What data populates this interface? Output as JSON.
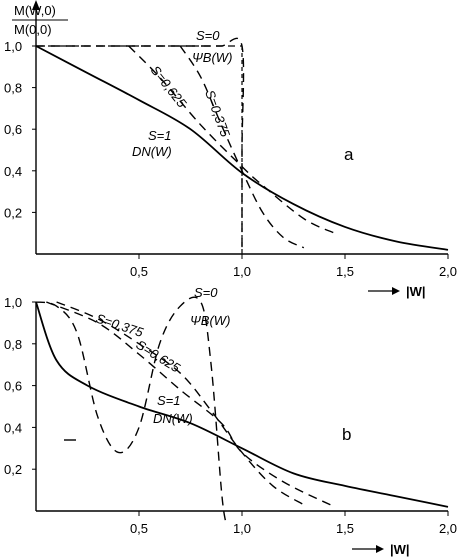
{
  "chart_data": [
    {
      "panel": "a",
      "type": "line",
      "ylabel_num": "M(W,0)",
      "ylabel_den": "M(0,0)",
      "xlabel": "→ |W|",
      "xlim": [
        0,
        2.0
      ],
      "ylim": [
        0,
        1.0
      ],
      "x_ticks": [
        "0,5",
        "1,0",
        "1,5",
        "2,0"
      ],
      "x_tick_values": [
        0.5,
        1.0,
        1.5,
        2.0
      ],
      "y_ticks": [
        "1,0",
        "0,8",
        "0,6",
        "0,4",
        "0,2"
      ],
      "y_tick_values": [
        1.0,
        0.8,
        0.6,
        0.4,
        0.2
      ],
      "series": [
        {
          "name": "S=0",
          "label2": "ΨB(W)",
          "style": "dashed",
          "x": [
            0,
            0.6,
            0.7,
            0.8,
            0.9,
            1.0,
            1.0,
            1.0
          ],
          "y": [
            1.0,
            1.0,
            1.0,
            1.0,
            1.0,
            1.0,
            0.5,
            0.0
          ]
        },
        {
          "name": "S=0,375",
          "style": "dashed",
          "x": [
            0.7,
            0.8,
            0.9,
            1.0,
            1.1,
            1.2,
            1.3
          ],
          "y": [
            1.0,
            0.85,
            0.62,
            0.4,
            0.2,
            0.08,
            0.03
          ]
        },
        {
          "name": "S=0,625",
          "style": "dashed",
          "x": [
            0.45,
            0.6,
            0.8,
            1.0,
            1.1,
            1.3,
            1.45
          ],
          "y": [
            1.0,
            0.85,
            0.62,
            0.42,
            0.33,
            0.17,
            0.1
          ]
        },
        {
          "name": "S=1",
          "label2": "DN(W)",
          "style": "solid",
          "x": [
            0,
            0.25,
            0.5,
            0.75,
            1.0,
            1.25,
            1.5,
            1.75,
            2.0
          ],
          "y": [
            1.0,
            0.87,
            0.74,
            0.6,
            0.39,
            0.24,
            0.13,
            0.06,
            0.02
          ]
        }
      ],
      "annotation": "a"
    },
    {
      "panel": "b",
      "type": "line",
      "xlabel": "→ |W|",
      "xlim": [
        0,
        2.0
      ],
      "ylim": [
        0,
        1.0
      ],
      "x_ticks": [
        "0,5",
        "1,0",
        "1,5",
        "2,0"
      ],
      "x_tick_values": [
        0.5,
        1.0,
        1.5,
        2.0
      ],
      "y_ticks": [
        "1,0",
        "0,8",
        "0,6",
        "0,4",
        "0,2"
      ],
      "y_tick_values": [
        1.0,
        0.8,
        0.6,
        0.4,
        0.2
      ],
      "series": [
        {
          "name": "S=0",
          "label2": "ΨB(W)",
          "style": "dashed",
          "x": [
            0,
            0.1,
            0.2,
            0.3,
            0.4,
            0.5,
            0.6,
            0.7,
            0.8,
            0.85,
            0.9,
            0.92
          ],
          "y": [
            1.0,
            0.98,
            0.85,
            0.45,
            0.28,
            0.4,
            0.8,
            0.98,
            1.0,
            0.7,
            0.1,
            -0.05
          ]
        },
        {
          "name": "S=0,375",
          "style": "dashed",
          "x": [
            0.1,
            0.3,
            0.5,
            0.7,
            0.85,
            1.0,
            1.15,
            1.3
          ],
          "y": [
            1.0,
            0.92,
            0.8,
            0.66,
            0.48,
            0.28,
            0.12,
            0.03
          ]
        },
        {
          "name": "S=0,625",
          "style": "dashed",
          "x": [
            0.05,
            0.3,
            0.5,
            0.7,
            0.9,
            1.0,
            1.2,
            1.45
          ],
          "y": [
            1.0,
            0.9,
            0.75,
            0.58,
            0.42,
            0.28,
            0.14,
            0.02
          ]
        },
        {
          "name": "S=1",
          "label2": "DN(W)",
          "style": "solid",
          "x": [
            0,
            0.1,
            0.25,
            0.5,
            0.75,
            1.0,
            1.25,
            1.5,
            1.75,
            1.9,
            2.0
          ],
          "y": [
            1.0,
            0.72,
            0.6,
            0.5,
            0.42,
            0.3,
            0.18,
            0.12,
            0.07,
            0.04,
            0.02
          ]
        }
      ],
      "annotation": "b"
    }
  ]
}
